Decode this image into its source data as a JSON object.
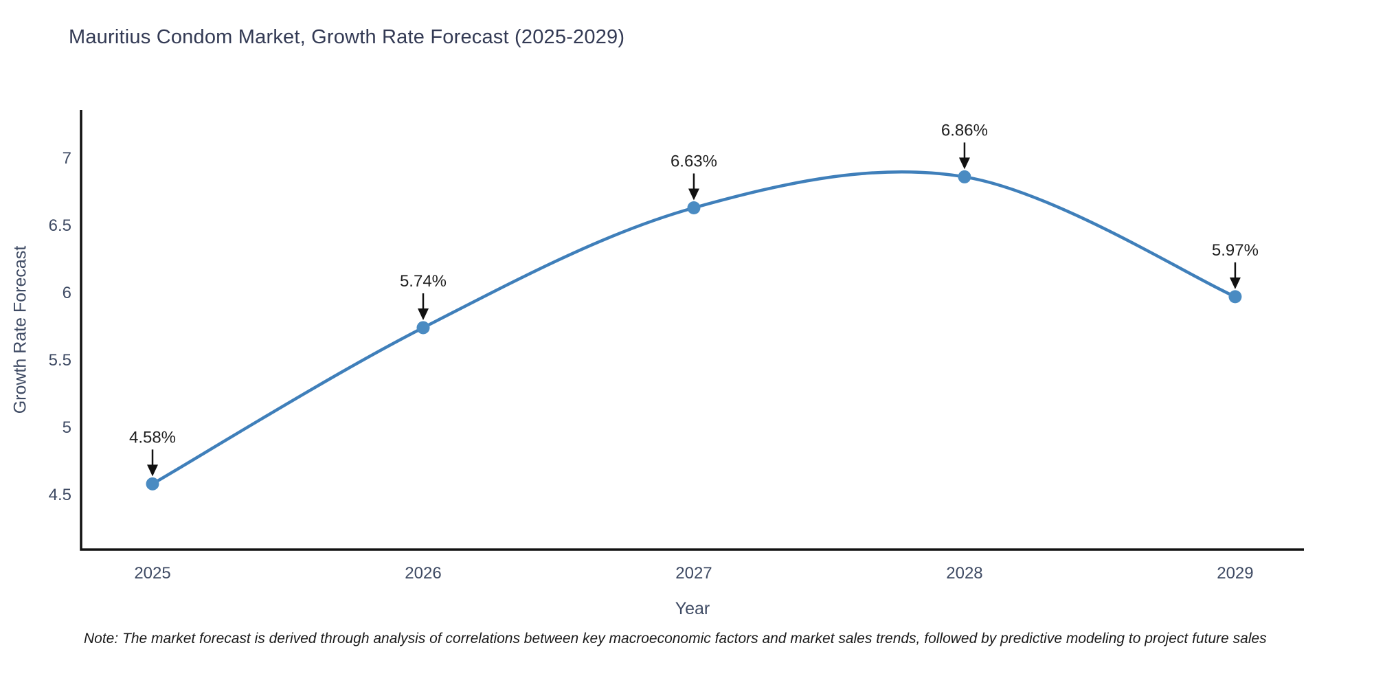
{
  "chart_data": {
    "type": "line",
    "title": "Mauritius Condom Market, Growth Rate Forecast (2025-2029)",
    "xlabel": "Year",
    "ylabel": "Growth Rate Forecast",
    "x": [
      2025,
      2026,
      2027,
      2028,
      2029
    ],
    "series": [
      {
        "name": "Growth Rate Forecast",
        "values": [
          4.58,
          5.74,
          6.63,
          6.86,
          5.97
        ]
      }
    ],
    "point_labels": [
      "4.58%",
      "5.74%",
      "6.63%",
      "6.86%",
      "5.97%"
    ],
    "xticks": [
      2025,
      2026,
      2027,
      2028,
      2029
    ],
    "yticks": [
      4.5,
      5,
      5.5,
      6,
      6.5,
      7
    ],
    "xlim": [
      2024.736,
      2029.254
    ],
    "ylim": [
      4.092,
      7.357
    ],
    "grid": false,
    "legend": false,
    "line_shape": "spline",
    "marker": "circle",
    "annotation_style": "value label with downward black arrow above each point",
    "colors": {
      "line": "#3f7fba",
      "marker": "#4a8bc2",
      "spine": "#111111",
      "tick_label": "#3e4a63",
      "title": "#333a54",
      "annotation": "#1f1f1f",
      "note": "#1a1a1a",
      "background": "#ffffff"
    },
    "note": "Note: The market forecast is derived through analysis of correlations between key macroeconomic factors and market sales trends, followed by predictive modeling to project future sales"
  }
}
